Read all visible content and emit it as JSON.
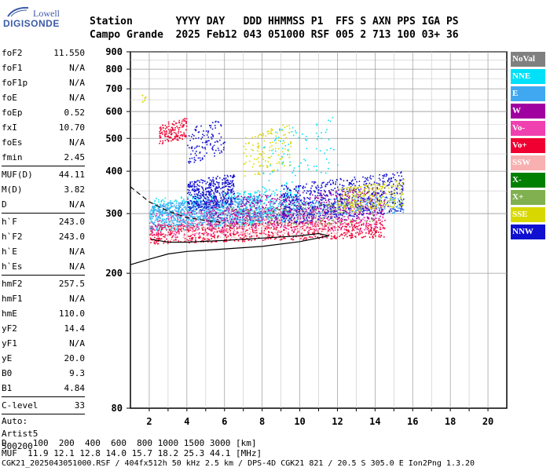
{
  "logo": {
    "line1": "Lowell",
    "line2": "DIGISONDE"
  },
  "header": {
    "row1": "Station       YYYY DAY   DDD HHMMSS P1  FFS S AXN PPS IGA PS",
    "row2": "Campo Grande  2025 Feb12 043 051000 RSF 005 2 713 100 03+ 36"
  },
  "params": {
    "group1": [
      {
        "k": "foF2",
        "v": "11.550"
      },
      {
        "k": "foF1",
        "v": "N/A"
      },
      {
        "k": "foF1p",
        "v": "N/A"
      },
      {
        "k": "foE",
        "v": "N/A"
      },
      {
        "k": "foEp",
        "v": "0.52"
      },
      {
        "k": "fxI",
        "v": "10.70"
      },
      {
        "k": "foEs",
        "v": "N/A"
      },
      {
        "k": "fmin",
        "v": "2.45"
      }
    ],
    "group2": [
      {
        "k": "MUF(D)",
        "v": "44.11"
      },
      {
        "k": "M(D)",
        "v": "3.82"
      },
      {
        "k": "D",
        "v": "N/A"
      }
    ],
    "group3": [
      {
        "k": "h`F",
        "v": "243.0"
      },
      {
        "k": "h`F2",
        "v": "243.0"
      },
      {
        "k": "h`E",
        "v": "N/A"
      },
      {
        "k": "h`Es",
        "v": "N/A"
      }
    ],
    "group4": [
      {
        "k": "hmF2",
        "v": "257.5"
      },
      {
        "k": "hmF1",
        "v": "N/A"
      },
      {
        "k": "hmE",
        "v": "110.0"
      },
      {
        "k": "yF2",
        "v": "14.4"
      },
      {
        "k": "yF1",
        "v": "N/A"
      },
      {
        "k": "yE",
        "v": "20.0"
      },
      {
        "k": "B0",
        "v": "9.3"
      },
      {
        "k": "B1",
        "v": "4.84"
      }
    ],
    "group5": [
      {
        "k": "C-level",
        "v": "33"
      }
    ],
    "auto": [
      "Auto:",
      "Artist5",
      "500200"
    ]
  },
  "legend": [
    {
      "label": "NoVal",
      "color": "#808080"
    },
    {
      "label": "NNE",
      "color": "#00e0f8"
    },
    {
      "label": "E",
      "color": "#40a8f0"
    },
    {
      "label": "W",
      "color": "#a000a0"
    },
    {
      "label": "Vo-",
      "color": "#f040b0"
    },
    {
      "label": "Vo+",
      "color": "#f00030"
    },
    {
      "label": "SSW",
      "color": "#f8b0b0"
    },
    {
      "label": "X-",
      "color": "#008000"
    },
    {
      "label": "X+",
      "color": "#80b050"
    },
    {
      "label": "SSE",
      "color": "#d8d800"
    },
    {
      "label": "NNW",
      "color": "#1010d0"
    }
  ],
  "chart_data": {
    "type": "scatter",
    "xlim": [
      1,
      21
    ],
    "ylim": [
      80,
      900
    ],
    "xticks": [
      "2",
      "4",
      "6",
      "8",
      "10",
      "12",
      "14",
      "16",
      "18",
      "20"
    ],
    "yticks": [
      "80",
      "200",
      "300",
      "400",
      "500",
      "600",
      "700",
      "800",
      "900"
    ],
    "yscale": "log",
    "grid": true,
    "trace_upper": {
      "x": [
        1.0,
        2.0,
        3.0,
        4.0,
        5.0,
        6.0
      ],
      "y": [
        360,
        325,
        305,
        292,
        286,
        282
      ]
    },
    "trace_lower": {
      "x": [
        1.0,
        2.0,
        3.0,
        4.0,
        6.0,
        8.0,
        10.0,
        11.55,
        11.0,
        10.0,
        8.0,
        6.0,
        4.0,
        3.0,
        2.1
      ],
      "y": [
        212,
        220,
        228,
        232,
        236,
        240,
        248,
        258,
        262,
        258,
        254,
        250,
        247,
        247,
        252
      ]
    },
    "clouds": [
      {
        "series": "NNE",
        "x": [
          2,
          10
        ],
        "y": [
          265,
          360
        ],
        "n": 700
      },
      {
        "series": "E",
        "x": [
          2,
          8
        ],
        "y": [
          270,
          340
        ],
        "n": 900
      },
      {
        "series": "E",
        "x": [
          8,
          15.5
        ],
        "y": [
          290,
          340
        ],
        "n": 400
      },
      {
        "series": "Vo+",
        "x": [
          2,
          14.5
        ],
        "y": [
          245,
          290
        ],
        "n": 800
      },
      {
        "series": "Vo-",
        "x": [
          2,
          14.5
        ],
        "y": [
          255,
          320
        ],
        "n": 500
      },
      {
        "series": "W",
        "x": [
          5,
          14.5
        ],
        "y": [
          270,
          360
        ],
        "n": 700
      },
      {
        "series": "NNW",
        "x": [
          9,
          15.5
        ],
        "y": [
          280,
          400
        ],
        "n": 600
      },
      {
        "series": "NNW",
        "x": [
          4,
          6.5
        ],
        "y": [
          300,
          400
        ],
        "n": 400
      },
      {
        "series": "NNW",
        "x": [
          4,
          6
        ],
        "y": [
          420,
          580
        ],
        "n": 120
      },
      {
        "series": "SSE",
        "x": [
          7,
          9.5
        ],
        "y": [
          380,
          560
        ],
        "n": 130
      },
      {
        "series": "SSE",
        "x": [
          12,
          15.5
        ],
        "y": [
          300,
          380
        ],
        "n": 250
      },
      {
        "series": "Vo+",
        "x": [
          2.5,
          4
        ],
        "y": [
          480,
          580
        ],
        "n": 140
      },
      {
        "series": "NNE",
        "x": [
          8,
          12
        ],
        "y": [
          350,
          600
        ],
        "n": 90
      },
      {
        "series": "X+",
        "x": [
          6,
          14
        ],
        "y": [
          270,
          330
        ],
        "n": 150
      },
      {
        "series": "SSW",
        "x": [
          3,
          12
        ],
        "y": [
          250,
          300
        ],
        "n": 200
      },
      {
        "series": "SSE",
        "x": [
          1.6,
          1.8
        ],
        "y": [
          640,
          700
        ],
        "n": 8
      }
    ]
  },
  "footer": {
    "row1": "D     100  200  400  600  800 1000 1500 3000 [km]",
    "row2": "MUF  11.9 12.1 12.8 14.0 15.7 18.2 25.3 44.1 [MHz]",
    "row3": "CGK21_2025043051000.RSF / 404fx512h 50 kHz 2.5 km / DPS-4D CGK21 821 / 20.5 S 305.0 E Ion2Png 1.3.20"
  }
}
